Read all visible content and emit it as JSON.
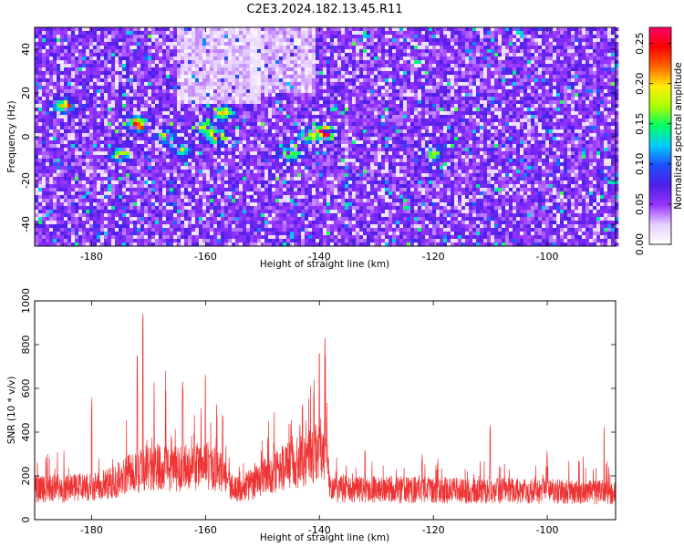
{
  "page_title": "C2E3.2024.182.13.45.R11",
  "chart_data": [
    {
      "type": "heatmap",
      "title": "C2E3.2024.182.13.45.R11",
      "xlabel": "Height of straight line (km)",
      "ylabel": "Frequency (Hz)",
      "xlim": [
        -190,
        -88
      ],
      "ylim": [
        -50,
        50
      ],
      "xticks": [
        -180,
        -160,
        -140,
        -120,
        -100
      ],
      "yticks": [
        -40,
        -20,
        0,
        20,
        40
      ],
      "colorbar": {
        "label": "Normalized spectral amplitude",
        "range": [
          0.0,
          0.27
        ],
        "ticks": [
          "0.00",
          "0.05",
          "0.10",
          "0.15",
          "0.20",
          "0.25"
        ],
        "colors": [
          "#ffffff",
          "#e6d0ff",
          "#9933ff",
          "#4b1fe6",
          "#1f4dff",
          "#00ccff",
          "#00ff66",
          "#aaff00",
          "#ffee00",
          "#ff6600",
          "#ff0000",
          "#ff0066"
        ]
      },
      "hotspots": [
        {
          "x": -172,
          "y": 6,
          "amp": 0.22
        },
        {
          "x": -167,
          "y": 0,
          "amp": 0.13
        },
        {
          "x": -164,
          "y": -6,
          "amp": 0.12
        },
        {
          "x": -160,
          "y": 4,
          "amp": 0.16
        },
        {
          "x": -158,
          "y": 0,
          "amp": 0.2
        },
        {
          "x": -157,
          "y": 11,
          "amp": 0.19
        },
        {
          "x": -145,
          "y": -8,
          "amp": 0.17
        },
        {
          "x": -142,
          "y": 0,
          "amp": 0.16
        },
        {
          "x": -139,
          "y": 2,
          "amp": 0.26
        },
        {
          "x": -120,
          "y": -8,
          "amp": 0.14
        },
        {
          "x": -185,
          "y": 14,
          "amp": 0.15
        },
        {
          "x": -175,
          "y": -8,
          "amp": 0.13
        }
      ],
      "grid": false
    },
    {
      "type": "line",
      "title": "",
      "xlabel": "Height of straight line (km)",
      "ylabel": "SNR (10 * v/v)",
      "xlim": [
        -190,
        -88
      ],
      "ylim": [
        0,
        1000
      ],
      "xticks": [
        -180,
        -160,
        -140,
        -120,
        -100
      ],
      "yticks": [
        0,
        200,
        400,
        600,
        800,
        1000
      ],
      "color": "#ee3333",
      "baseline": 140,
      "envelope": [
        {
          "x": -190,
          "y": 140
        },
        {
          "x": -178,
          "y": 150
        },
        {
          "x": -175,
          "y": 190
        },
        {
          "x": -170,
          "y": 240
        },
        {
          "x": -165,
          "y": 230
        },
        {
          "x": -160,
          "y": 250
        },
        {
          "x": -157,
          "y": 220
        },
        {
          "x": -155,
          "y": 130
        },
        {
          "x": -152,
          "y": 160
        },
        {
          "x": -147,
          "y": 230
        },
        {
          "x": -143,
          "y": 270
        },
        {
          "x": -139,
          "y": 330
        },
        {
          "x": -138,
          "y": 140
        },
        {
          "x": -120,
          "y": 135
        },
        {
          "x": -100,
          "y": 130
        },
        {
          "x": -88,
          "y": 125
        }
      ],
      "peaks": [
        {
          "x": -188,
          "y": 300
        },
        {
          "x": -180,
          "y": 570
        },
        {
          "x": -172,
          "y": 760
        },
        {
          "x": -171,
          "y": 1000
        },
        {
          "x": -169,
          "y": 630
        },
        {
          "x": -167,
          "y": 680
        },
        {
          "x": -164,
          "y": 640
        },
        {
          "x": -162,
          "y": 420
        },
        {
          "x": -160,
          "y": 740
        },
        {
          "x": -158,
          "y": 550
        },
        {
          "x": -157,
          "y": 500
        },
        {
          "x": -148,
          "y": 360
        },
        {
          "x": -145,
          "y": 470
        },
        {
          "x": -143,
          "y": 560
        },
        {
          "x": -141,
          "y": 650
        },
        {
          "x": -140,
          "y": 880
        },
        {
          "x": -139,
          "y": 860
        },
        {
          "x": -132,
          "y": 340
        },
        {
          "x": -122,
          "y": 300
        },
        {
          "x": -110,
          "y": 450
        },
        {
          "x": -100,
          "y": 320
        },
        {
          "x": -90,
          "y": 430
        }
      ],
      "grid": false
    }
  ]
}
